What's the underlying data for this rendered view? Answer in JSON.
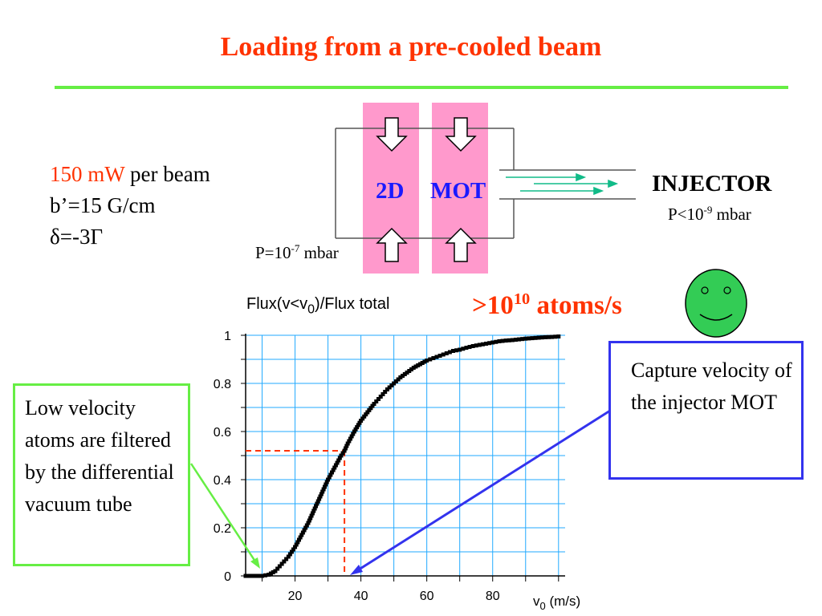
{
  "slide": {
    "title": "Loading from a pre-cooled beam",
    "params": {
      "power_value": "150 mW",
      "power_rest": " per beam",
      "gradient": "b’=15 G/cm",
      "detuning": "δ=-3Γ"
    },
    "apparatus": {
      "label_2d": "2D",
      "label_mot": "MOT",
      "injector_title": "INJECTOR",
      "injector_pressure_prefix": "P<10",
      "injector_pressure_exp": "-9",
      "injector_pressure_unit": " mbar",
      "mot_pressure_prefix": "P=10",
      "mot_pressure_exp": "-7",
      "mot_pressure_unit": " mbar"
    },
    "flux_label": {
      "prefix": "Flux(v<v",
      "sub": "0",
      "suffix": ")/Flux total"
    },
    "atom_rate": {
      "prefix": ">10",
      "exp": "10",
      "suffix": " atoms/s"
    },
    "callout_left": "Low velocity atoms are filtered by the differential vacuum tube",
    "callout_right": "Capture velocity of the injector MOT",
    "face_icon": "smiley-face-icon",
    "colors": {
      "title": "#ff3300",
      "rule": "#66ee44",
      "pink": "#ff99cc",
      "blue": "#1a1aff",
      "grid": "#22aaff",
      "marker_line": "#ff3300"
    }
  },
  "chart_data": {
    "type": "scatter",
    "title": "",
    "xlabel": "v0 (m/s)",
    "ylabel": "Flux(v<v0)/Flux total",
    "xlim": [
      5,
      102
    ],
    "ylim": [
      0,
      1
    ],
    "xticks": [
      20,
      40,
      60,
      80
    ],
    "xtick_labels": [
      "20",
      "40",
      "60",
      "80"
    ],
    "yticks": [
      0,
      0.2,
      0.4,
      0.6,
      0.8,
      1
    ],
    "ytick_labels": [
      "0",
      "0.2",
      "0.4",
      "0.6",
      "0.8",
      "1"
    ],
    "grid": true,
    "marker_point": {
      "x": 35,
      "y": 0.52
    },
    "series": [
      {
        "x": [
          5,
          8,
          10,
          12,
          14,
          16,
          18,
          20,
          22,
          24,
          26,
          28,
          30,
          32,
          34,
          35,
          36,
          38,
          40,
          42,
          44,
          46,
          48,
          50,
          52,
          54,
          56,
          58,
          60,
          62,
          64,
          66,
          68,
          70,
          72,
          74,
          76,
          78,
          80,
          82,
          84,
          86,
          88,
          90,
          92,
          94,
          96,
          98,
          100
        ],
        "y": [
          0,
          0,
          0,
          0.005,
          0.02,
          0.05,
          0.08,
          0.12,
          0.17,
          0.22,
          0.28,
          0.34,
          0.4,
          0.45,
          0.5,
          0.52,
          0.55,
          0.6,
          0.645,
          0.68,
          0.715,
          0.745,
          0.775,
          0.8,
          0.825,
          0.845,
          0.865,
          0.88,
          0.895,
          0.905,
          0.915,
          0.925,
          0.935,
          0.94,
          0.948,
          0.955,
          0.96,
          0.965,
          0.97,
          0.975,
          0.978,
          0.98,
          0.983,
          0.986,
          0.988,
          0.99,
          0.992,
          0.993,
          0.995
        ]
      }
    ]
  }
}
